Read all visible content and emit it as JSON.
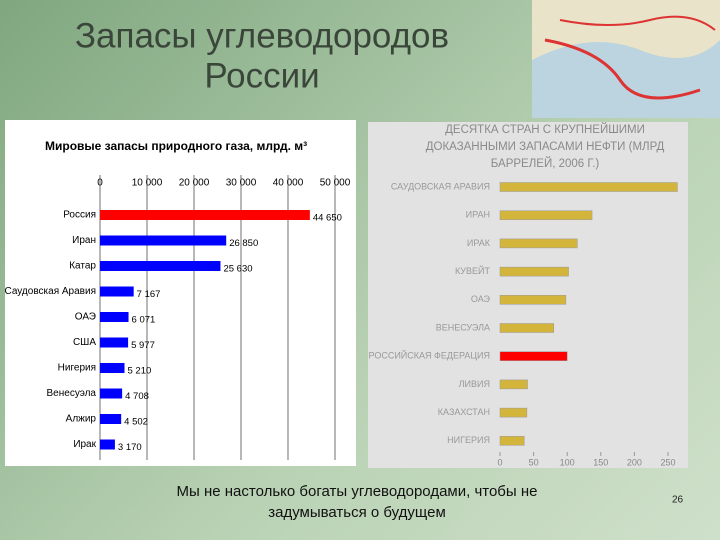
{
  "slide": {
    "title_lines": [
      "Запасы углеводородов",
      "России"
    ],
    "caption_lines": [
      "Мы не настолько богаты углеводородами, чтобы не",
      "задумываться о будущем"
    ],
    "page_number": "26"
  },
  "chart_data": [
    {
      "type": "hbar",
      "title": "Мировые запасы природного газа, млрд. м³",
      "categories": [
        "Россия",
        "Иран",
        "Катар",
        "Саудовская Аравия",
        "ОАЭ",
        "США",
        "Нигерия",
        "Венесуэла",
        "Алжир",
        "Ирак"
      ],
      "values": [
        44650,
        26850,
        25630,
        7167,
        6071,
        5977,
        5210,
        4708,
        4502,
        3170
      ],
      "value_labels": [
        "44 650",
        "26 850",
        "25 630",
        "7 167",
        "6 071",
        "5 977",
        "5 210",
        "4 708",
        "4 502",
        "3 170"
      ],
      "colors": [
        "#ff0000",
        "#0000ff",
        "#0000ff",
        "#0000ff",
        "#0000ff",
        "#0000ff",
        "#0000ff",
        "#0000ff",
        "#0000ff",
        "#0000ff"
      ],
      "xlim": [
        0,
        50000
      ],
      "xticks": [
        0,
        {
          "value": 10000,
          "label": "10 000"
        },
        {
          "value": 20000,
          "label": "20 000"
        },
        {
          "value": 30000,
          "label": "30 000"
        },
        {
          "value": 40000,
          "label": "40 000"
        },
        {
          "value": 50000,
          "label": "50 000"
        }
      ],
      "grid": true
    },
    {
      "type": "hbar",
      "title": "ДЕСЯТКА СТРАН С КРУПНЕЙШИМИ ДОКАЗАННЫМИ ЗАПАСАМИ НЕФТИ (МЛРД БАРРЕЛЕЙ, 2006 Г.)",
      "categories": [
        "САУДОВСКАЯ АРАВИЯ",
        "ИРАН",
        "ИРАК",
        "КУВЕЙТ",
        "ОАЭ",
        "ВЕНЕСУЭЛА",
        "РОССИЙСКАЯ ФЕДЕРАЦИЯ",
        "ЛИВИЯ",
        "КАЗАХСТАН",
        "НИГЕРИЯ"
      ],
      "values": [
        264,
        137,
        115,
        102,
        98,
        80,
        100,
        41,
        40,
        36
      ],
      "colors": [
        "#d4b53c",
        "#d4b53c",
        "#d4b53c",
        "#d4b53c",
        "#d4b53c",
        "#d4b53c",
        "#ff0000",
        "#d4b53c",
        "#d4b53c",
        "#d4b53c"
      ],
      "xlim": [
        0,
        250
      ],
      "xticks": [
        0,
        50,
        100,
        150,
        200,
        250
      ],
      "grid": false
    }
  ]
}
